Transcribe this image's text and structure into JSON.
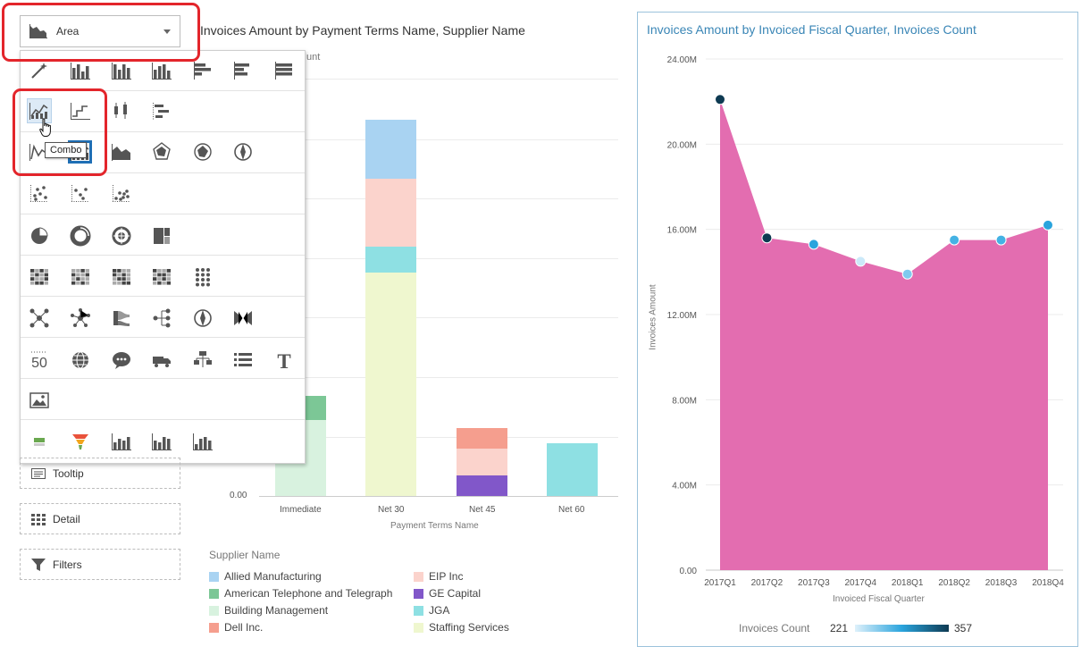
{
  "toolbar": {
    "chart_type_label": "Area"
  },
  "picker": {
    "tooltip": "Combo"
  },
  "drop_targets": [
    {
      "label": "Tooltip",
      "icon": "tooltip-icon"
    },
    {
      "label": "Detail",
      "icon": "detail-icon"
    },
    {
      "label": "Filters",
      "icon": "filter-icon"
    }
  ],
  "left_chart": {
    "title": "Invoices Amount by Payment Terms Name, Supplier Name",
    "ylabel_fragment": "unt",
    "zero_label": "0.00",
    "x_axis_title": "Payment Terms Name",
    "legend_title": "Supplier Name",
    "legend": [
      {
        "name": "Allied Manufacturing",
        "color": "#a9d3f2"
      },
      {
        "name": "EIP Inc",
        "color": "#fbd3cc"
      },
      {
        "name": "American Telephone and Telegraph",
        "color": "#7cc796"
      },
      {
        "name": "GE Capital",
        "color": "#8157c9"
      },
      {
        "name": "Building Management",
        "color": "#d8f2df"
      },
      {
        "name": "JGA",
        "color": "#8ee0e3"
      },
      {
        "name": "Dell Inc.",
        "color": "#f59e8e"
      },
      {
        "name": "Staffing Services",
        "color": "#eff7cf"
      }
    ]
  },
  "chart_data": {
    "type": "area",
    "title": "Invoices Amount by Invoiced Fiscal Quarter, Invoices Count",
    "xlabel": "Invoiced Fiscal Quarter",
    "ylabel": "Invoices Amount",
    "categories": [
      "2017Q1",
      "2017Q2",
      "2017Q3",
      "2017Q4",
      "2018Q1",
      "2018Q2",
      "2018Q3",
      "2018Q4"
    ],
    "values": [
      22.1,
      15.6,
      15.3,
      14.5,
      13.9,
      15.5,
      15.5,
      16.2
    ],
    "y_ticks": [
      "0.00",
      "4.00M",
      "8.00M",
      "12.00M",
      "16.00M",
      "20.00M",
      "24.00M"
    ],
    "ylim": [
      0,
      24
    ],
    "grid": true,
    "area_color": "#e36db0",
    "color_legend": {
      "title": "Invoices Count",
      "min": "221",
      "max": "357",
      "colors": [
        "#dff1fb",
        "#2aa4dd",
        "#0e3a52"
      ]
    },
    "point_colors": [
      "#0e3a52",
      "#0e3a52",
      "#2aa4dd",
      "#cbe9f9",
      "#7fcaee",
      "#44b2e4",
      "#44b2e4",
      "#2aa4dd"
    ]
  }
}
